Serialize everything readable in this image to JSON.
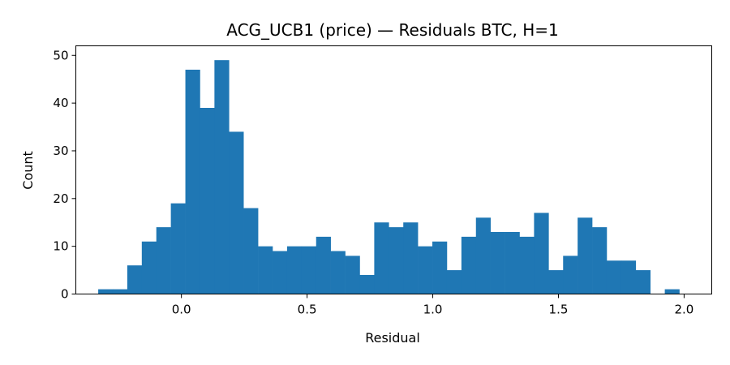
{
  "chart_data": {
    "type": "bar",
    "title": "ACG_UCB1 (price) — Residuals BTC, H=1",
    "xlabel": "Residual",
    "ylabel": "Count",
    "xlim": [
      -0.42,
      2.11
    ],
    "ylim": [
      0,
      52
    ],
    "x_ticks": [
      0.0,
      0.5,
      1.0,
      1.5,
      2.0
    ],
    "x_tick_labels": [
      "0.0",
      "0.5",
      "1.0",
      "1.5",
      "2.0"
    ],
    "y_ticks": [
      0,
      10,
      20,
      30,
      40,
      50
    ],
    "y_tick_labels": [
      "0",
      "10",
      "20",
      "30",
      "40",
      "50"
    ],
    "grid": false,
    "bin_start": -0.331,
    "bin_width": 0.0578,
    "values": [
      1,
      1,
      6,
      11,
      14,
      19,
      47,
      39,
      49,
      34,
      18,
      10,
      9,
      10,
      10,
      12,
      9,
      8,
      4,
      15,
      14,
      15,
      10,
      11,
      5,
      12,
      16,
      13,
      13,
      12,
      17,
      5,
      8,
      16,
      14,
      7,
      7,
      5,
      0,
      1
    ],
    "color": "#1f77b4"
  }
}
